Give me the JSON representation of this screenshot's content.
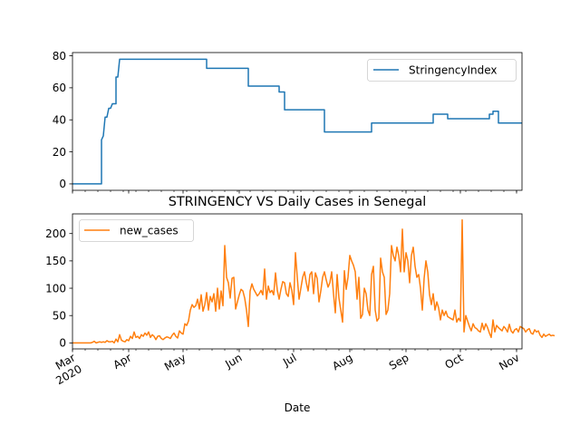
{
  "chart_data": [
    {
      "type": "line",
      "title": "",
      "xlabel": "",
      "ylabel": "",
      "ylim": [
        -4,
        82
      ],
      "yticks": [
        0,
        20,
        40,
        60,
        80
      ],
      "grid": false,
      "legend_position": "top-right",
      "series": [
        {
          "name": "StringencyIndex",
          "color": "#1f77b4",
          "points": [
            [
              "2020-03-01",
              0
            ],
            [
              "2020-03-16",
              0
            ],
            [
              "2020-03-17",
              0
            ],
            [
              "2020-03-17",
              27.5
            ],
            [
              "2020-03-18",
              30
            ],
            [
              "2020-03-19",
              41.7
            ],
            [
              "2020-03-20",
              41.7
            ],
            [
              "2020-03-21",
              47.2
            ],
            [
              "2020-03-22",
              47.2
            ],
            [
              "2020-03-23",
              50
            ],
            [
              "2020-03-25",
              50
            ],
            [
              "2020-03-25",
              66.7
            ],
            [
              "2020-03-26",
              66.7
            ],
            [
              "2020-03-27",
              77.8
            ],
            [
              "2020-05-14",
              77.8
            ],
            [
              "2020-05-14",
              72.2
            ],
            [
              "2020-06-06",
              72.2
            ],
            [
              "2020-06-06",
              61.1
            ],
            [
              "2020-06-23",
              61.1
            ],
            [
              "2020-06-23",
              57.4
            ],
            [
              "2020-06-26",
              57.4
            ],
            [
              "2020-06-26",
              46.3
            ],
            [
              "2020-07-18",
              46.3
            ],
            [
              "2020-07-18",
              32.4
            ],
            [
              "2020-08-13",
              32.4
            ],
            [
              "2020-08-13",
              38
            ],
            [
              "2020-09-16",
              38
            ],
            [
              "2020-09-16",
              43.5
            ],
            [
              "2020-09-24",
              43.5
            ],
            [
              "2020-09-24",
              40.7
            ],
            [
              "2020-10-17",
              40.7
            ],
            [
              "2020-10-17",
              43.5
            ],
            [
              "2020-10-19",
              43.5
            ],
            [
              "2020-10-19",
              45.4
            ],
            [
              "2020-10-22",
              45.4
            ],
            [
              "2020-10-22",
              38
            ],
            [
              "2020-11-04",
              38
            ]
          ]
        }
      ]
    },
    {
      "type": "line",
      "title": "STRINGENCY VS Daily Cases in Senegal",
      "xlabel": "Date",
      "ylabel": "",
      "ylim": [
        -11,
        236
      ],
      "yticks": [
        0,
        50,
        100,
        150,
        200
      ],
      "grid": false,
      "legend_position": "top-left",
      "xlim": [
        "2020-03-01",
        "2020-11-04"
      ],
      "x_tick_labels": [
        {
          "date": "2020-03-01",
          "label": "Mar\n2020"
        },
        {
          "date": "2020-04-01",
          "label": "Apr"
        },
        {
          "date": "2020-05-01",
          "label": "May"
        },
        {
          "date": "2020-06-01",
          "label": "Jun"
        },
        {
          "date": "2020-07-01",
          "label": "Jul"
        },
        {
          "date": "2020-08-01",
          "label": "Aug"
        },
        {
          "date": "2020-09-01",
          "label": "Sep"
        },
        {
          "date": "2020-10-01",
          "label": "Oct"
        },
        {
          "date": "2020-11-01",
          "label": "Nov"
        }
      ],
      "series": [
        {
          "name": "new_cases",
          "color": "#ff7f0e",
          "start_date": "2020-03-01",
          "values": [
            0,
            0,
            0,
            0,
            0,
            0,
            0,
            0,
            0,
            0,
            0,
            1,
            3,
            0,
            1,
            2,
            1,
            2,
            1,
            4,
            2,
            2,
            3,
            0,
            7,
            2,
            15,
            5,
            3,
            2,
            6,
            4,
            12,
            8,
            20,
            10,
            12,
            8,
            15,
            12,
            18,
            14,
            20,
            10,
            15,
            12,
            6,
            12,
            13,
            8,
            6,
            9,
            11,
            10,
            8,
            14,
            18,
            12,
            9,
            22,
            18,
            16,
            35,
            32,
            40,
            60,
            70,
            65,
            68,
            80,
            62,
            88,
            58,
            70,
            92,
            60,
            85,
            75,
            90,
            58,
            100,
            62,
            95,
            68,
            178,
            120,
            110,
            82,
            118,
            120,
            62,
            75,
            88,
            98,
            95,
            82,
            60,
            30,
            95,
            108,
            98,
            92,
            86,
            90,
            96,
            88,
            135,
            80,
            104,
            92,
            96,
            88,
            128,
            96,
            80,
            98,
            112,
            110,
            90,
            85,
            110,
            96,
            70,
            165,
            120,
            80,
            100,
            120,
            130,
            110,
            95,
            125,
            130,
            90,
            128,
            118,
            75,
            95,
            120,
            130,
            115,
            102,
            110,
            130,
            90,
            55,
            125,
            82,
            60,
            38,
            132,
            98,
            120,
            160,
            150,
            142,
            130,
            80,
            120,
            45,
            52,
            100,
            90,
            60,
            50,
            125,
            140,
            60,
            40,
            45,
            155,
            130,
            120,
            52,
            60,
            90,
            178,
            160,
            150,
            175,
            160,
            130,
            208,
            130,
            165,
            150,
            110,
            160,
            175,
            140,
            120,
            125,
            100,
            60,
            118,
            150,
            130,
            88,
            70,
            90,
            60,
            75,
            64,
            42,
            60,
            50,
            58,
            48,
            46,
            44,
            42,
            60,
            38,
            45,
            40,
            225,
            20,
            50,
            40,
            30,
            22,
            35,
            28,
            26,
            22,
            20,
            36,
            24,
            35,
            28,
            18,
            10,
            42,
            20,
            32,
            28,
            25,
            22,
            30,
            26,
            20,
            34,
            22,
            18,
            24,
            26,
            20,
            30,
            28,
            26,
            20,
            24,
            26,
            18,
            16,
            24,
            20,
            22,
            14,
            10,
            16,
            12,
            14,
            16,
            13,
            14,
            13
          ]
        }
      ]
    }
  ]
}
